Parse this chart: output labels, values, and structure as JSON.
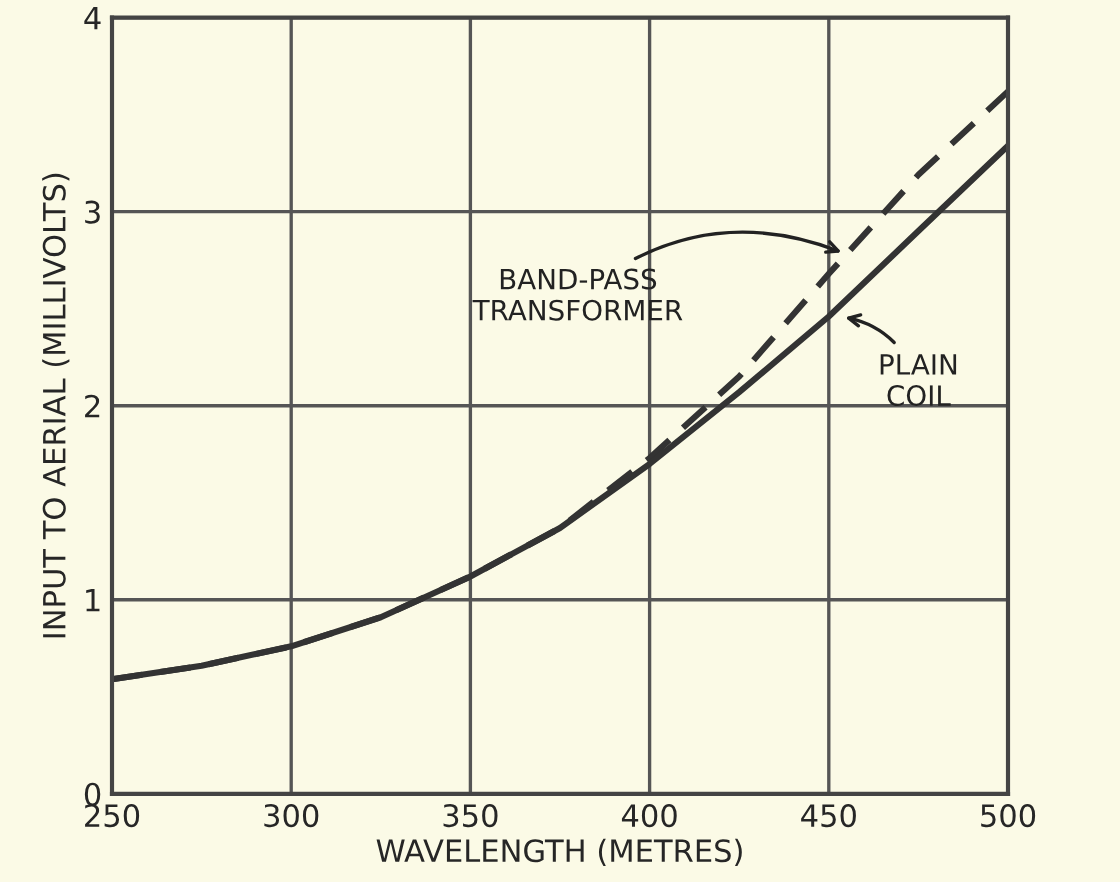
{
  "chart_data": {
    "type": "line",
    "xlabel": "WAVELENGTH (METRES)",
    "ylabel": "INPUT TO AERIAL (MILLIVOLTS)",
    "x": [
      250,
      275,
      300,
      325,
      350,
      375,
      400,
      425,
      450,
      475,
      500
    ],
    "series": [
      {
        "name": "BAND-PASS TRANSFORMER",
        "color": "#333333",
        "line_style": "dashed",
        "values": [
          0.59,
          0.66,
          0.76,
          0.91,
          1.12,
          1.37,
          1.73,
          2.15,
          2.68,
          3.19,
          3.62
        ]
      },
      {
        "name": "PLAIN COIL",
        "color": "#333333",
        "line_style": "solid",
        "values": [
          0.59,
          0.66,
          0.76,
          0.91,
          1.12,
          1.37,
          1.7,
          2.07,
          2.46,
          2.9,
          3.34
        ]
      }
    ],
    "xlim": [
      250,
      500
    ],
    "xticks": [
      250,
      300,
      350,
      400,
      450,
      500
    ],
    "ylim": [
      0,
      4
    ],
    "yticks": [
      0,
      1,
      2,
      3,
      4
    ],
    "grid": true,
    "legend": false,
    "marker": "none"
  }
}
